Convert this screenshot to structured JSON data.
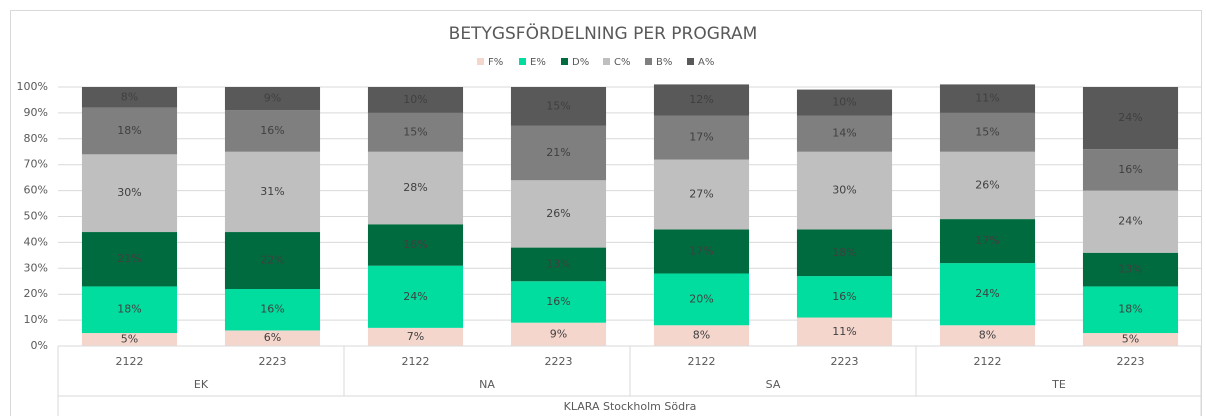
{
  "chart_data": {
    "type": "stacked_bar",
    "title": "BETYGSFÖRDELNING PER PROGRAM",
    "categories": [
      "2122",
      "2223",
      "2122",
      "2223",
      "2122",
      "2223",
      "2122",
      "2223"
    ],
    "groups": [
      "EK",
      "NA",
      "SA",
      "TE"
    ],
    "axis_title": "KLARA Stockholm Södra",
    "series": [
      {
        "name": "F%",
        "color": "#f5d6cd",
        "values": [
          5,
          6,
          7,
          9,
          8,
          11,
          8,
          5
        ],
        "value_labels": [
          "5%",
          "6%",
          "7%",
          "9%",
          "8%",
          "11%",
          "8%",
          "5%"
        ]
      },
      {
        "name": "E%",
        "color": "#00dd9f",
        "values": [
          18,
          16,
          24,
          16,
          20,
          16,
          24,
          18
        ],
        "value_labels": [
          "18%",
          "16%",
          "24%",
          "16%",
          "20%",
          "16%",
          "24%",
          "18%"
        ]
      },
      {
        "name": "D%",
        "color": "#006b3e",
        "values": [
          21,
          22,
          16,
          13,
          17,
          18,
          17,
          13
        ],
        "value_labels": [
          "21%",
          "22%",
          "16%",
          "13%",
          "17%",
          "18%",
          "17%",
          "13%"
        ]
      },
      {
        "name": "C%",
        "color": "#bfbfbf",
        "values": [
          30,
          31,
          28,
          26,
          27,
          30,
          26,
          24
        ],
        "value_labels": [
          "30%",
          "31%",
          "28%",
          "26%",
          "27%",
          "30%",
          "26%",
          "24%"
        ]
      },
      {
        "name": "B%",
        "color": "#7f7f7f",
        "values": [
          18,
          16,
          15,
          21,
          17,
          14,
          15,
          16
        ],
        "value_labels": [
          "18%",
          "16%",
          "15%",
          "21%",
          "17%",
          "14%",
          "15%",
          "16%"
        ]
      },
      {
        "name": "A%",
        "color": "#595959",
        "values": [
          8,
          9,
          10,
          15,
          12,
          10,
          11,
          24
        ],
        "value_labels": [
          "8%",
          "9%",
          "10%",
          "15%",
          "12%",
          "10%",
          "11%",
          "24%"
        ]
      }
    ],
    "ylim": [
      0,
      100
    ],
    "yticks": [
      {
        "value": 0,
        "label": "0%"
      },
      {
        "value": 10,
        "label": "10%"
      },
      {
        "value": 20,
        "label": "20%"
      },
      {
        "value": 30,
        "label": "30%"
      },
      {
        "value": 40,
        "label": "40%"
      },
      {
        "value": 50,
        "label": "50%"
      },
      {
        "value": 60,
        "label": "60%"
      },
      {
        "value": 70,
        "label": "70%"
      },
      {
        "value": 80,
        "label": "80%"
      },
      {
        "value": 90,
        "label": "90%"
      },
      {
        "value": 100,
        "label": "100%"
      }
    ],
    "grid": true,
    "legend": "top"
  }
}
